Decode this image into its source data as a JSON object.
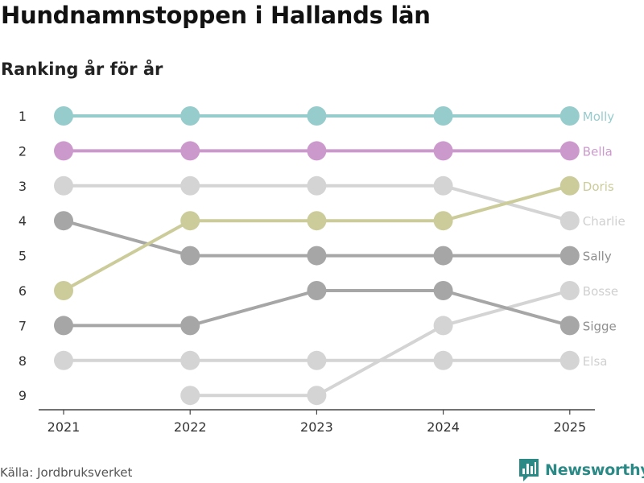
{
  "title": "Hundnamnstoppen i Hallands län",
  "subtitle": "Ranking år för år",
  "source": "Källa: Jordbruksverket",
  "brand": {
    "name": "Newsworthy",
    "icon": "newsworthy-logo-icon",
    "color": "#2b8a86"
  },
  "chart_data": {
    "type": "line",
    "title": "Hundnamnstoppen i Hallands län",
    "subtitle": "Ranking år för år",
    "xlabel": "",
    "ylabel": "",
    "x": [
      "2021",
      "2022",
      "2023",
      "2024",
      "2025"
    ],
    "y_ticks": [
      1,
      2,
      3,
      4,
      5,
      6,
      7,
      8,
      9
    ],
    "ylim": [
      9,
      1
    ],
    "grid": false,
    "series": [
      {
        "name": "Molly",
        "values": [
          1,
          1,
          1,
          1,
          1
        ],
        "color": "#97cccd",
        "label_color": "#97cccd"
      },
      {
        "name": "Bella",
        "values": [
          2,
          2,
          2,
          2,
          2
        ],
        "color": "#cc99cc",
        "label_color": "#cc99cc"
      },
      {
        "name": "Doris",
        "values": [
          6,
          4,
          4,
          4,
          3
        ],
        "color": "#cbcc99",
        "label_color": "#cbcc99"
      },
      {
        "name": "Charlie",
        "values": [
          3,
          3,
          3,
          3,
          4
        ],
        "color": "#d4d4d4",
        "label_color": "#d0d0d0"
      },
      {
        "name": "Sally",
        "values": [
          4,
          5,
          5,
          5,
          5
        ],
        "color": "#a6a6a6",
        "label_color": "#8f8f8f"
      },
      {
        "name": "Bosse",
        "values": [
          null,
          9,
          9,
          7,
          6
        ],
        "color": "#d4d4d4",
        "label_color": "#d0d0d0"
      },
      {
        "name": "Sigge",
        "values": [
          7,
          7,
          6,
          6,
          7
        ],
        "color": "#a6a6a6",
        "label_color": "#8f8f8f"
      },
      {
        "name": "Elsa",
        "values": [
          8,
          8,
          8,
          8,
          8
        ],
        "color": "#d4d4d4",
        "label_color": "#d0d0d0"
      }
    ]
  }
}
